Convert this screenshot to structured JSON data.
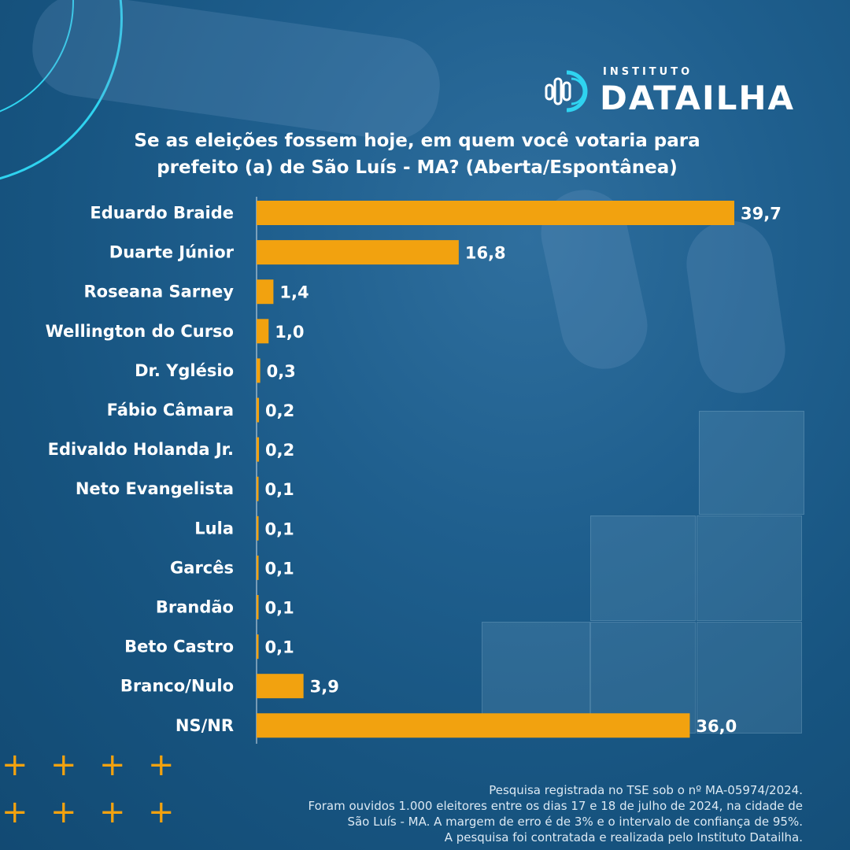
{
  "logo": {
    "small": "INSTITUTO",
    "big": "DATAILHA",
    "icon": "datailha-logo-icon"
  },
  "title_lines": [
    "Se as eleições fossem hoje, em quem você votaria para",
    "prefeito (a) de São Luís - MA? (Aberta/Espontânea)"
  ],
  "chart_data": {
    "type": "bar",
    "orientation": "horizontal",
    "categories": [
      "Eduardo Braide",
      "Duarte Júnior",
      "Roseana Sarney",
      "Wellington do Curso",
      "Dr. Yglésio",
      "Fábio Câmara",
      "Edivaldo Holanda Jr.",
      "Neto Evangelista",
      "Lula",
      "Garcês",
      "Brandão",
      "Beto Castro",
      "Branco/Nulo",
      "NS/NR"
    ],
    "values": [
      39.7,
      16.8,
      1.4,
      1.0,
      0.3,
      0.2,
      0.2,
      0.1,
      0.1,
      0.1,
      0.1,
      0.1,
      3.9,
      36.0
    ],
    "value_labels": [
      "39,7",
      "16,8",
      "1,4",
      "1,0",
      "0,3",
      "0,2",
      "0,2",
      "0,1",
      "0,1",
      "0,1",
      "0,1",
      "0,1",
      "3,9",
      "36,0"
    ],
    "xlim": [
      0,
      39.7
    ],
    "bar_color": "#f2a20f",
    "grid": false,
    "legend": "none"
  },
  "footnote_lines": [
    "Pesquisa registrada no TSE sob o nº MA-05974/2024.",
    "Foram ouvidos 1.000 eleitores entre os dias 17 e 18 de julho de 2024, na cidade de",
    "São Luís - MA. A margem de erro é de 3% e o intervalo de confiança de 95%.",
    "A pesquisa foi contratada e realizada pelo Instituto Datailha."
  ],
  "colors": {
    "accent": "#f2a20f",
    "arc": "#2fd3f0",
    "background": "#1a5884"
  }
}
